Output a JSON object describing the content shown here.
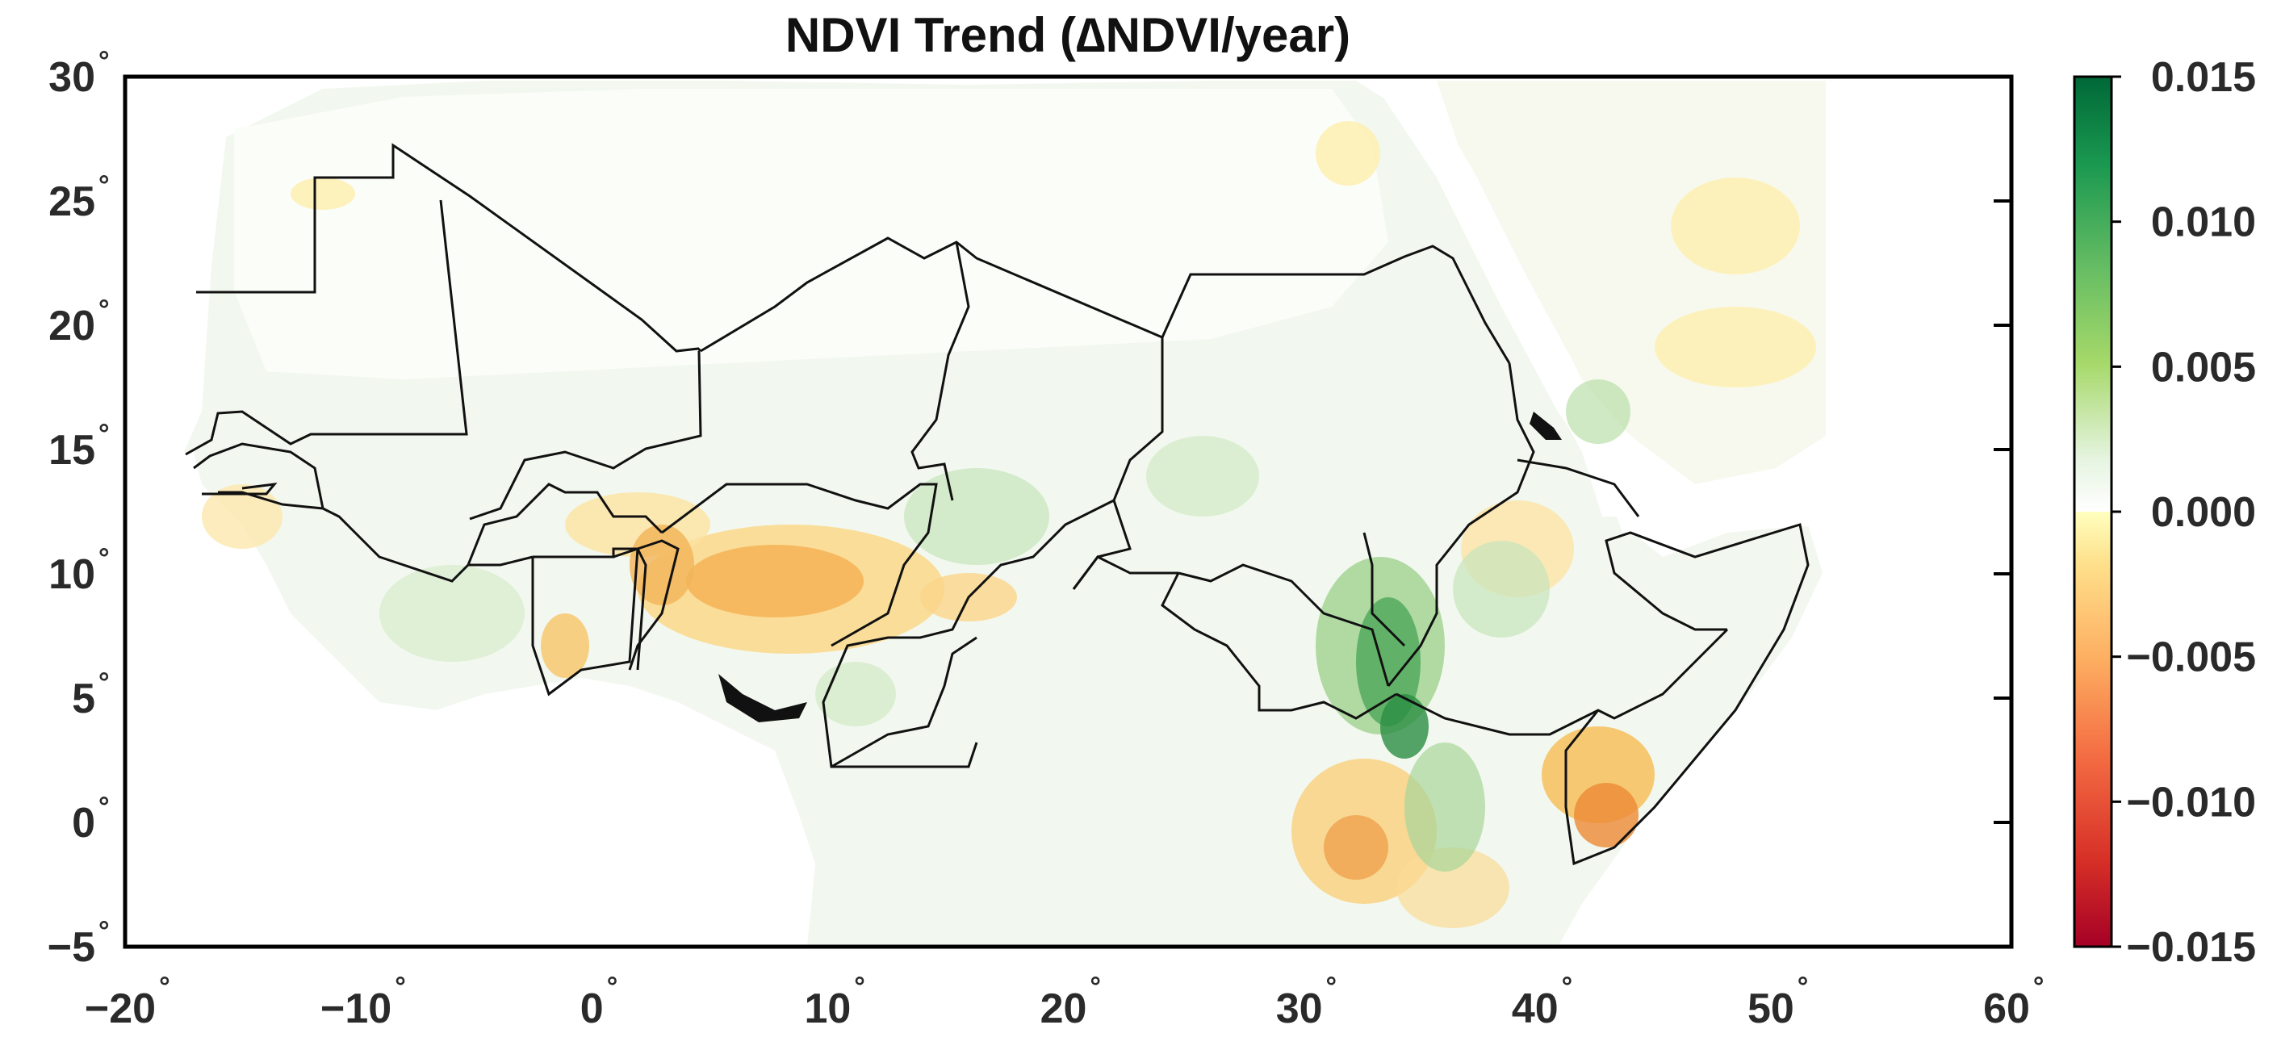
{
  "title": "NDVI Trend (∆NDVI/year)",
  "map": {
    "extent": {
      "lon": [
        -20,
        60
      ],
      "lat": [
        -5,
        30
      ]
    },
    "x_ticks": [
      {
        "value": -20,
        "label": "−20"
      },
      {
        "value": -10,
        "label": "−10"
      },
      {
        "value": 0,
        "label": "0"
      },
      {
        "value": 10,
        "label": "10"
      },
      {
        "value": 20,
        "label": "20"
      },
      {
        "value": 30,
        "label": "30"
      },
      {
        "value": 40,
        "label": "40"
      },
      {
        "value": 50,
        "label": "50"
      },
      {
        "value": 60,
        "label": "60"
      }
    ],
    "y_ticks": [
      {
        "value": 30,
        "label": "30"
      },
      {
        "value": 25,
        "label": "25"
      },
      {
        "value": 20,
        "label": "20"
      },
      {
        "value": 15,
        "label": "15"
      },
      {
        "value": 10,
        "label": "10"
      },
      {
        "value": 5,
        "label": "5"
      },
      {
        "value": 0,
        "label": "0"
      },
      {
        "value": -5,
        "label": "−5"
      }
    ],
    "degree_symbol": "°"
  },
  "colorbar": {
    "colormap": "RdYlGn",
    "range": [
      -0.015,
      0.015
    ],
    "ticks": [
      {
        "value": 0.015,
        "label": "0.015"
      },
      {
        "value": 0.01,
        "label": "0.010"
      },
      {
        "value": 0.005,
        "label": "0.005"
      },
      {
        "value": 0.0,
        "label": "0.000"
      },
      {
        "value": -0.005,
        "label": "−0.005"
      },
      {
        "value": -0.01,
        "label": "−0.010"
      },
      {
        "value": -0.015,
        "label": "−0.015"
      }
    ],
    "colors": {
      "min": "#a50026",
      "mid": "#ffffbf",
      "zero": "#ffffff",
      "max": "#006837"
    }
  },
  "colors": {
    "land_background": "#edf6ea",
    "greening": "#7cc576",
    "strong_greening": "#1f8a3e",
    "browning": "#f7c355",
    "strong_browning": "#e8742a",
    "desert": "#fbfdf9",
    "borders": "#111111"
  }
}
